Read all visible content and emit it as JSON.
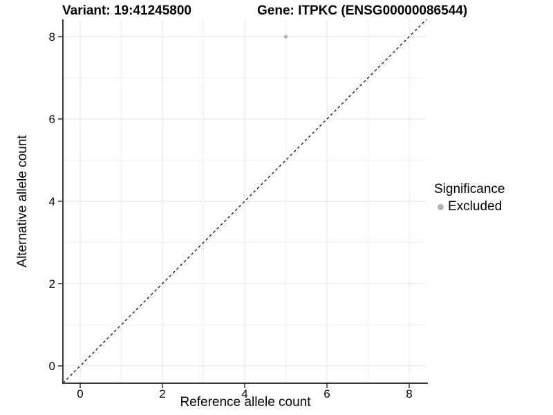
{
  "chart_data": {
    "type": "scatter",
    "titles": {
      "left": "Variant: 19:41245800",
      "right": "Gene: ITPKC (ENSG00000086544)"
    },
    "xlabel": "Reference allele count",
    "ylabel": "Alternative allele count",
    "axes": {
      "xlim": [
        -0.42,
        8.42
      ],
      "ylim": [
        -0.42,
        8.42
      ],
      "x_ticks": [
        0,
        2,
        4,
        6,
        8
      ],
      "x_tick_labels": [
        "0",
        "2",
        "4",
        "6",
        "8"
      ],
      "y_ticks": [
        0,
        2,
        4,
        6,
        8
      ],
      "y_tick_labels": [
        "0",
        "2",
        "4",
        "6",
        "8"
      ],
      "x_minor_ticks": [
        1,
        3,
        5,
        7
      ],
      "y_minor_ticks": [
        1,
        3,
        5,
        7
      ],
      "grid": true
    },
    "reference_line": {
      "kind": "identity",
      "equation": "y = x",
      "style": "dashed",
      "color": "#000000"
    },
    "series": [
      {
        "name": "Excluded",
        "color": "#b4b4b4",
        "point_radius": 2.8,
        "points": [
          {
            "x": 5,
            "y": 8
          }
        ]
      }
    ],
    "legend": {
      "title": "Significance",
      "position": "right",
      "items": [
        {
          "label": "Excluded",
          "color": "#b4b4b4",
          "marker": "circle"
        }
      ]
    },
    "style_colors": {
      "grid_major": "#e4e4e4",
      "grid_minor": "#efefef",
      "axis_line": "#3c3c3c",
      "tick_mark": "#333333"
    }
  }
}
